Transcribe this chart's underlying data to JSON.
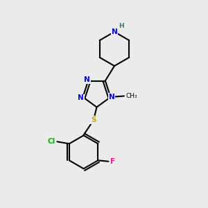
{
  "background_color": "#ebebeb",
  "atom_colors": {
    "N": "#0000ff",
    "S": "#ccaa00",
    "Cl": "#00bb00",
    "F": "#ee1199",
    "H": "#337777",
    "C": "#000000"
  },
  "bond_color": "#000000",
  "lw": 1.5
}
